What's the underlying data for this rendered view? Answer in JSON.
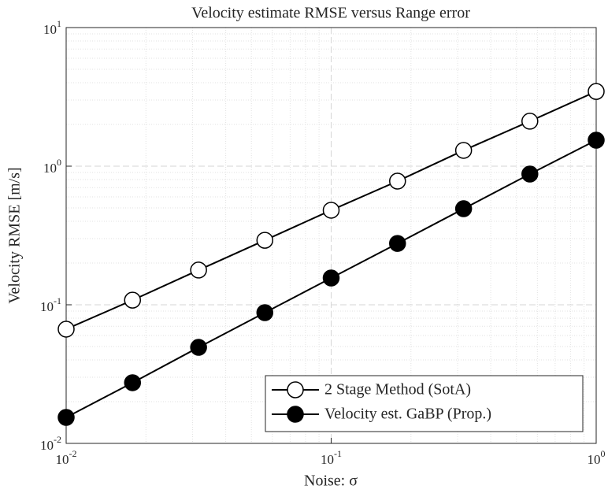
{
  "chart_data": {
    "type": "line",
    "title": "Velocity estimate RMSE versus Range error",
    "xlabel": "Noise: σ",
    "ylabel": "Velocity RMSE [m/s]",
    "x": [
      0.01,
      0.0178,
      0.0316,
      0.0562,
      0.1,
      0.178,
      0.316,
      0.562,
      1
    ],
    "series": [
      {
        "name": "2 Stage Method (SotA)",
        "color": "#000000",
        "marker": "open",
        "values": [
          0.0667,
          0.108,
          0.178,
          0.292,
          0.481,
          0.78,
          1.3,
          2.11,
          3.46
        ]
      },
      {
        "name": "Velocity est. GaBP (Prop.)",
        "color": "#000000",
        "marker": "filled",
        "values": [
          0.0154,
          0.0274,
          0.0493,
          0.0877,
          0.156,
          0.277,
          0.493,
          0.877,
          1.54
        ]
      }
    ],
    "xscale": "log",
    "yscale": "log",
    "xlim": [
      0.01,
      1
    ],
    "ylim": [
      0.01,
      10
    ],
    "xticks": [
      {
        "value": 0.01,
        "label": [
          "10",
          "-2"
        ]
      },
      {
        "value": 0.1,
        "label": [
          "10",
          "-1"
        ]
      },
      {
        "value": 1,
        "label": [
          "10",
          "0"
        ]
      }
    ],
    "yticks": [
      {
        "value": 0.01,
        "label": [
          "10",
          "-2"
        ]
      },
      {
        "value": 0.1,
        "label": [
          "10",
          "-1"
        ]
      },
      {
        "value": 1,
        "label": [
          "10",
          "0"
        ]
      },
      {
        "value": 10,
        "label": [
          "10",
          "1"
        ]
      }
    ],
    "grid": true,
    "legend": "southeast"
  }
}
